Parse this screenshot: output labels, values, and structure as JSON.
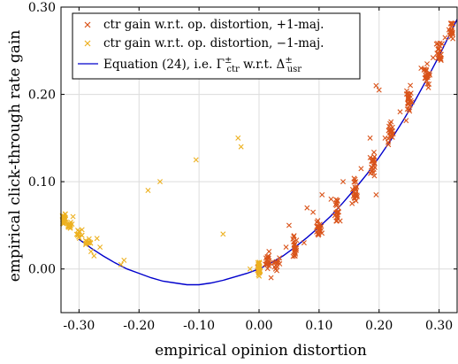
{
  "chart_data": {
    "type": "scatter",
    "title": "",
    "xlabel": "empirical opinion distortion",
    "ylabel": "empirical click-through rate gain",
    "xlim": [
      -0.33,
      0.33
    ],
    "ylim": [
      -0.05,
      0.3
    ],
    "x_ticks": [
      -0.3,
      -0.2,
      -0.1,
      0.0,
      0.1,
      0.2,
      0.3
    ],
    "x_tick_labels": [
      "-0.30",
      "-0.20",
      "-0.10",
      "0.00",
      "0.10",
      "0.20",
      "0.30"
    ],
    "y_ticks": [
      0.0,
      0.1,
      0.2,
      0.3
    ],
    "y_tick_labels": [
      "0.00",
      "0.10",
      "0.20",
      "0.30"
    ],
    "grid": true,
    "legend_position": "top-left",
    "legend": [
      {
        "label": "ctr gain w.r.t. op. distortion, +1-maj.",
        "marker": "x",
        "color": "#d95319"
      },
      {
        "label": "ctr gain w.r.t. op. distortion, −1-maj.",
        "marker": "x",
        "color": "#edb120"
      },
      {
        "label_prefix": "Equation (24), i.e. Γ",
        "label_sub1": "ctr",
        "label_sup1": "±",
        "label_mid": " w.r.t. Δ",
        "label_sub2": "usr",
        "label_sup2": "±",
        "marker": "line",
        "color": "#0000cc"
      }
    ],
    "series": [
      {
        "name": "ctr gain w.r.t. op. distortion, +1-maj.",
        "kind": "scatter",
        "color": "#d95319",
        "clusters": [
          {
            "x": 0.0,
            "y": 0.0,
            "n": 10,
            "dx": 0.004,
            "dy": 0.012
          },
          {
            "x": 0.015,
            "y": 0.01,
            "n": 18,
            "dx": 0.006,
            "dy": 0.012
          },
          {
            "x": 0.03,
            "y": 0.005,
            "n": 12,
            "dx": 0.008,
            "dy": 0.012
          },
          {
            "x": 0.06,
            "y": 0.025,
            "n": 22,
            "dx": 0.005,
            "dy": 0.018
          },
          {
            "x": 0.1,
            "y": 0.048,
            "n": 22,
            "dx": 0.006,
            "dy": 0.018
          },
          {
            "x": 0.13,
            "y": 0.068,
            "n": 22,
            "dx": 0.006,
            "dy": 0.018
          },
          {
            "x": 0.16,
            "y": 0.09,
            "n": 24,
            "dx": 0.006,
            "dy": 0.02
          },
          {
            "x": 0.19,
            "y": 0.118,
            "n": 22,
            "dx": 0.006,
            "dy": 0.02
          },
          {
            "x": 0.22,
            "y": 0.155,
            "n": 22,
            "dx": 0.006,
            "dy": 0.02
          },
          {
            "x": 0.25,
            "y": 0.195,
            "n": 22,
            "dx": 0.006,
            "dy": 0.02
          },
          {
            "x": 0.28,
            "y": 0.222,
            "n": 22,
            "dx": 0.006,
            "dy": 0.02
          },
          {
            "x": 0.3,
            "y": 0.25,
            "n": 18,
            "dx": 0.006,
            "dy": 0.02
          },
          {
            "x": 0.32,
            "y": 0.275,
            "n": 18,
            "dx": 0.005,
            "dy": 0.018
          }
        ],
        "outliers": [
          [
            0.28,
            0.235
          ],
          [
            0.275,
            0.228
          ],
          [
            0.29,
            0.242
          ],
          [
            0.25,
            0.2
          ],
          [
            0.195,
            0.21
          ],
          [
            0.2,
            0.205
          ],
          [
            0.27,
            0.23
          ],
          [
            0.235,
            0.18
          ],
          [
            0.245,
            0.17
          ],
          [
            0.21,
            0.15
          ],
          [
            0.185,
            0.15
          ],
          [
            0.31,
            0.265
          ],
          [
            0.305,
            0.258
          ],
          [
            0.14,
            0.1
          ],
          [
            0.12,
            0.08
          ],
          [
            0.09,
            0.065
          ],
          [
            0.105,
            0.085
          ],
          [
            0.075,
            0.03
          ],
          [
            0.17,
            0.115
          ],
          [
            0.155,
            0.075
          ],
          [
            0.08,
            0.07
          ],
          [
            0.05,
            0.05
          ],
          [
            0.02,
            -0.01
          ],
          [
            0.045,
            0.025
          ],
          [
            0.135,
            0.055
          ],
          [
            0.215,
            0.145
          ],
          [
            0.195,
            0.085
          ]
        ]
      },
      {
        "name": "ctr gain w.r.t. op. distortion, −1-maj.",
        "kind": "scatter",
        "color": "#edb120",
        "clusters": [
          {
            "x": -0.325,
            "y": 0.058,
            "n": 28,
            "dx": 0.004,
            "dy": 0.01
          },
          {
            "x": -0.315,
            "y": 0.05,
            "n": 14,
            "dx": 0.006,
            "dy": 0.006
          },
          {
            "x": -0.3,
            "y": 0.04,
            "n": 12,
            "dx": 0.008,
            "dy": 0.008
          },
          {
            "x": -0.285,
            "y": 0.03,
            "n": 10,
            "dx": 0.008,
            "dy": 0.008
          },
          {
            "x": 0.0,
            "y": 0.0,
            "n": 28,
            "dx": 0.003,
            "dy": 0.013
          }
        ],
        "outliers": [
          [
            -0.27,
            0.035
          ],
          [
            -0.265,
            0.025
          ],
          [
            -0.28,
            0.02
          ],
          [
            -0.23,
            0.005
          ],
          [
            -0.225,
            0.01
          ],
          [
            -0.275,
            0.015
          ],
          [
            -0.185,
            0.09
          ],
          [
            -0.165,
            0.1
          ],
          [
            -0.105,
            0.125
          ],
          [
            -0.06,
            0.04
          ],
          [
            -0.035,
            0.15
          ],
          [
            -0.03,
            0.14
          ],
          [
            -0.31,
            0.06
          ],
          [
            -0.295,
            0.045
          ],
          [
            -0.015,
            0.0
          ]
        ]
      },
      {
        "name": "Equation (24), i.e. Γctr± w.r.t. Δusr±",
        "kind": "line",
        "color": "#0000cc",
        "x": [
          -0.3,
          -0.28,
          -0.26,
          -0.24,
          -0.22,
          -0.2,
          -0.18,
          -0.16,
          -0.14,
          -0.12,
          -0.11,
          -0.1,
          -0.08,
          -0.06,
          -0.04,
          -0.02,
          0.0,
          0.02,
          0.04,
          0.06,
          0.08,
          0.1,
          0.12,
          0.14,
          0.16,
          0.18,
          0.2,
          0.22,
          0.24,
          0.26,
          0.28,
          0.3,
          0.32,
          0.33
        ],
        "y": [
          0.034,
          0.024,
          0.015,
          0.007,
          0.0,
          -0.005,
          -0.01,
          -0.014,
          -0.016,
          -0.018,
          -0.018,
          -0.018,
          -0.016,
          -0.013,
          -0.009,
          -0.005,
          0.0,
          0.007,
          0.015,
          0.025,
          0.036,
          0.048,
          0.061,
          0.076,
          0.092,
          0.109,
          0.128,
          0.148,
          0.17,
          0.193,
          0.218,
          0.244,
          0.272,
          0.286
        ]
      }
    ]
  }
}
